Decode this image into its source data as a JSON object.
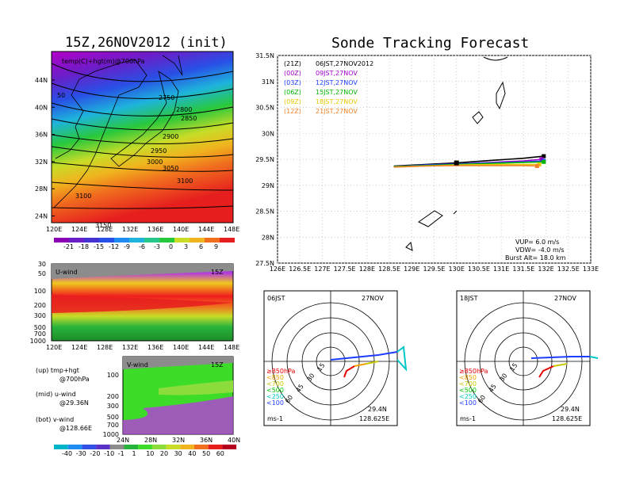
{
  "left_title": "15Z,26NOV2012 (init)",
  "right_title": "Sonde Tracking Forecast",
  "map_panel": {
    "label": "temp(C)+hgt(m)@700hPa",
    "lat_ticks": [
      "44N",
      "40N",
      "36N",
      "32N",
      "28N",
      "24N"
    ],
    "lon_ticks": [
      "120E",
      "124E",
      "128E",
      "132E",
      "136E",
      "140E",
      "144E",
      "148E"
    ],
    "contour_labels": [
      "50",
      "2750",
      "2800",
      "2850",
      "2900",
      "2950",
      "3000",
      "3050",
      "3100",
      "3100",
      "3150"
    ],
    "colorbar": [
      "-21",
      "-18",
      "-15",
      "-12",
      "-9",
      "-6",
      "-3",
      "0",
      "3",
      "6",
      "9"
    ]
  },
  "u_panel": {
    "label": "U-wind",
    "time": "15Z",
    "p_ticks": [
      "30",
      "50",
      "100",
      "200",
      "300",
      "500",
      "700",
      "1000"
    ],
    "lon_ticks": [
      "120E",
      "124E",
      "128E",
      "132E",
      "136E",
      "140E",
      "144E",
      "148E"
    ]
  },
  "v_panel": {
    "label": "V-wind",
    "time": "15Z",
    "p_ticks": [
      "100",
      "200",
      "300",
      "500",
      "700",
      "1000"
    ],
    "lat_ticks": [
      "24N",
      "28N",
      "32N",
      "36N",
      "40N"
    ],
    "colorbar": [
      "-40",
      "-30",
      "-20",
      "-10",
      "-1",
      "1",
      "10",
      "20",
      "30",
      "40",
      "50",
      "60"
    ]
  },
  "notes": [
    {
      "a": "(up) tmp+hgt",
      "b": "@700hPa"
    },
    {
      "a": "(mid) u-wind",
      "b": "@29.36N"
    },
    {
      "a": "(bot) v-wind",
      "b": "@128.66E"
    }
  ],
  "track_panel": {
    "lat_ticks": [
      "31.5N",
      "31N",
      "30.5N",
      "30N",
      "29.5N",
      "29N",
      "28.5N",
      "28N",
      "27.5N"
    ],
    "lon_ticks": [
      "126E",
      "126.5E",
      "127E",
      "127.5E",
      "128E",
      "128.5E",
      "129E",
      "129.5E",
      "130E",
      "130.5E",
      "131E",
      "131.5E",
      "132E",
      "132.5E",
      "133E"
    ],
    "legend": [
      {
        "z": "(21Z)",
        "t": "06JST,27NOV2012",
        "color": "#000000"
      },
      {
        "z": "(00Z)",
        "t": "09JST,27NOV",
        "color": "#a000c8"
      },
      {
        "z": "(03Z)",
        "t": "12JST,27NOV",
        "color": "#1e3cff"
      },
      {
        "z": "(06Z)",
        "t": "15JST,27NOV",
        "color": "#00b400"
      },
      {
        "z": "(09Z)",
        "t": "18JST,27NOV",
        "color": "#e6c800"
      },
      {
        "z": "(12Z)",
        "t": "21JST,27NOV",
        "color": "#f08228"
      }
    ],
    "params": [
      "VUP= 6.0 m/s",
      "VDW= -4.0 m/s",
      "Burst Alt= 18.0 km"
    ]
  },
  "hodo_left": {
    "hour": "06JST",
    "date": "27NOV",
    "lat": "29.4N",
    "lon": "128.625E",
    "unit": "ms-1",
    "rings": [
      "15",
      "30",
      "45",
      "60"
    ]
  },
  "hodo_right": {
    "hour": "18JST",
    "date": "27NOV",
    "lat": "29.4N",
    "lon": "128.625E",
    "unit": "ms-1",
    "rings": [
      "15",
      "30",
      "45",
      "60"
    ]
  },
  "hodo_legend": [
    {
      "t": "≥850hPa",
      "color": "#e60000"
    },
    {
      "t": "<850",
      "color": "#f0a000"
    },
    {
      "t": "<700",
      "color": "#c8c800"
    },
    {
      "t": "<500",
      "color": "#00c800"
    },
    {
      "t": "<250",
      "color": "#00c8c8"
    },
    {
      "t": "<100",
      "color": "#1e3cff"
    }
  ],
  "chart_data": [
    {
      "type": "line",
      "title": "Sonde Tracking Forecast",
      "xlim": [
        126,
        133
      ],
      "ylim": [
        27.5,
        31.5
      ],
      "series": [
        {
          "name": "(21Z) 06JST,27NOV2012",
          "x": [
            128.6,
            129.3,
            130.0,
            130.8,
            131.5,
            131.95
          ],
          "y": [
            29.37,
            29.4,
            29.43,
            29.48,
            29.52,
            29.56
          ]
        },
        {
          "name": "(00Z) 09JST,27NOV",
          "x": [
            128.6,
            129.3,
            130.0,
            130.8,
            131.5,
            131.9
          ],
          "y": [
            29.36,
            29.39,
            29.41,
            29.44,
            29.47,
            29.5
          ]
        },
        {
          "name": "(03Z) 12JST,27NOV",
          "x": [
            128.6,
            129.3,
            130.0,
            130.8,
            131.5,
            131.95
          ],
          "y": [
            29.36,
            29.39,
            29.41,
            29.43,
            29.45,
            29.47
          ]
        },
        {
          "name": "(06Z) 15JST,27NOV",
          "x": [
            128.6,
            129.3,
            130.0,
            130.8,
            131.5,
            131.95
          ],
          "y": [
            29.36,
            29.38,
            29.4,
            29.42,
            29.44,
            29.45
          ]
        },
        {
          "name": "(09Z) 18JST,27NOV",
          "x": [
            128.6,
            129.3,
            130.0,
            130.8,
            131.5,
            131.85
          ],
          "y": [
            29.35,
            29.37,
            29.39,
            29.4,
            29.4,
            29.4
          ]
        },
        {
          "name": "(12Z) 21JST,27NOV",
          "x": [
            128.6,
            129.3,
            130.0,
            130.8,
            131.5,
            131.8
          ],
          "y": [
            29.35,
            29.37,
            29.38,
            29.38,
            29.38,
            29.37
          ]
        }
      ]
    }
  ]
}
